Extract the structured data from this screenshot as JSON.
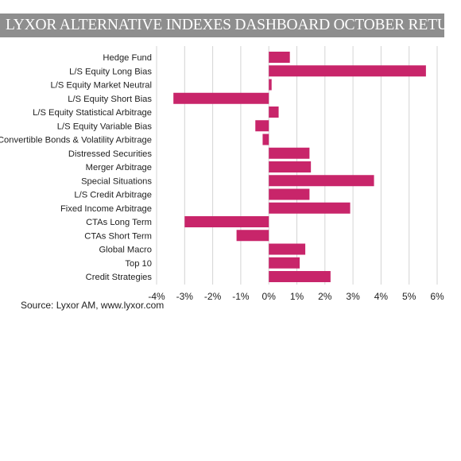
{
  "title": "LYXOR ALTERNATIVE INDEXES DASHBOARD OCTOBER RETURNS",
  "source": "Source: Lyxor AM, www.lyxor.com",
  "colors": {
    "bar": "#c8256a",
    "banner": "#8e8e8e",
    "grid": "#d4d4d4"
  },
  "chart_data": {
    "type": "bar",
    "orientation": "horizontal",
    "title": "LYXOR ALTERNATIVE INDEXES DASHBOARD OCTOBER RETURNS",
    "xlabel": "",
    "ylabel": "",
    "xlim": [
      -4,
      6
    ],
    "grid": "vertical",
    "legend": "none",
    "categories": [
      "Hedge Fund",
      "L/S Equity Long Bias",
      "L/S Equity Market Neutral",
      "L/S Equity Short Bias",
      "L/S Equity Statistical Arbitrage",
      "L/S Equity Variable Bias",
      "Convertible Bonds & Volatility Arbitrage",
      "Distressed Securities",
      "Merger Arbitrage",
      "Special Situations",
      "L/S Credit Arbitrage",
      "Fixed Income Arbitrage",
      "CTAs Long Term",
      "CTAs Short Term",
      "Global Macro",
      "Top 10",
      "Credit Strategies"
    ],
    "values": [
      0.75,
      5.6,
      0.1,
      -3.4,
      0.35,
      -0.48,
      -0.22,
      1.45,
      1.5,
      3.75,
      1.45,
      2.9,
      -3.0,
      -1.15,
      1.3,
      1.1,
      2.2
    ],
    "ticks": [
      -4,
      -3,
      -2,
      -1,
      0,
      1,
      2,
      3,
      4,
      5,
      6
    ],
    "tick_labels": [
      "-4%",
      "-3%",
      "-2%",
      "-1%",
      "0%",
      "1%",
      "2%",
      "3%",
      "4%",
      "5%",
      "6%"
    ]
  }
}
